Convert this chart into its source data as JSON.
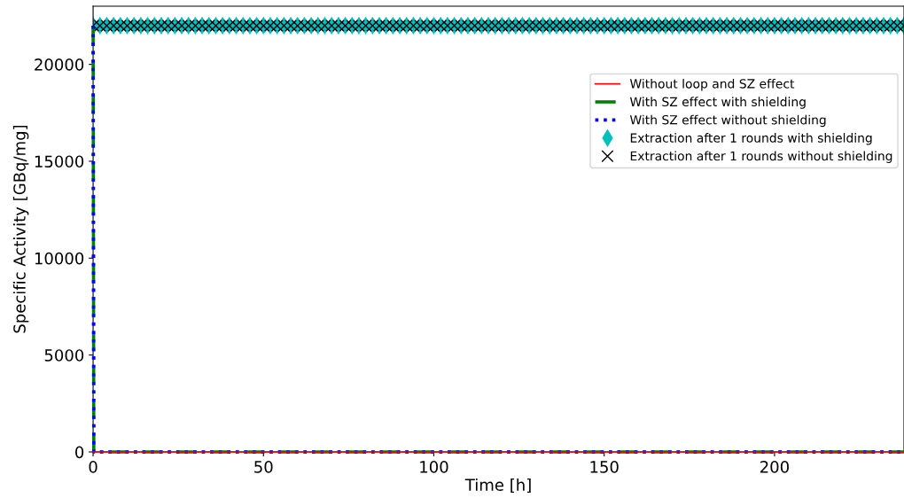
{
  "chart_data": {
    "type": "line",
    "xlabel": "Time [h]",
    "ylabel": "Specific Activity [GBq/mg]",
    "xlim": [
      0,
      238
    ],
    "ylim": [
      0,
      23000
    ],
    "xticks": [
      0,
      50,
      100,
      150,
      200
    ],
    "yticks": [
      0,
      5000,
      10000,
      15000,
      20000
    ],
    "grid": false,
    "legend": "top right",
    "series": [
      {
        "name": "Without loop and SZ effect",
        "color": "#ff0000",
        "line_style": "solid",
        "x": [
          0,
          238
        ],
        "values": [
          0,
          0
        ]
      },
      {
        "name": "With SZ effect with shielding",
        "color": "#008000",
        "line_style": "dashdot",
        "x": [
          0,
          0.2,
          238
        ],
        "values": [
          22000,
          0,
          0
        ]
      },
      {
        "name": "With SZ effect without shielding",
        "color": "#0000ff",
        "line_style": "dotted",
        "x": [
          0,
          0.2,
          238
        ],
        "values": [
          22000,
          0,
          0
        ]
      },
      {
        "name": "Extraction after 1 rounds with shielding",
        "type": "scatter",
        "marker": "diamond",
        "color": "#00bfbf",
        "x": [
          0,
          2,
          4,
          6,
          8,
          10,
          12,
          14,
          16,
          18,
          20,
          22,
          24,
          26,
          28,
          30,
          32,
          34,
          36,
          38,
          40,
          42,
          44,
          46,
          48,
          50,
          52,
          54,
          56,
          58,
          60,
          62,
          64,
          66,
          68,
          70,
          72,
          74,
          76,
          78,
          80,
          82,
          84,
          86,
          88,
          90,
          92,
          94,
          96,
          98,
          100,
          102,
          104,
          106,
          108,
          110,
          112,
          114,
          116,
          118,
          120,
          122,
          124,
          126,
          128,
          130,
          132,
          134,
          136,
          138,
          140,
          142,
          144,
          146,
          148,
          150,
          152,
          154,
          156,
          158,
          160,
          162,
          164,
          166,
          168,
          170,
          172,
          174,
          176,
          178,
          180,
          182,
          184,
          186,
          188,
          190,
          192,
          194,
          196,
          198,
          200,
          202,
          204,
          206,
          208,
          210,
          212,
          214,
          216,
          218,
          220,
          222,
          224,
          226,
          228,
          230,
          232,
          234,
          236,
          238
        ],
        "values": [
          22000,
          22000,
          22000,
          22000,
          22000,
          22000,
          22000,
          22000,
          22000,
          22000,
          22000,
          22000,
          22000,
          22000,
          22000,
          22000,
          22000,
          22000,
          22000,
          22000,
          22000,
          22000,
          22000,
          22000,
          22000,
          22000,
          22000,
          22000,
          22000,
          22000,
          22000,
          22000,
          22000,
          22000,
          22000,
          22000,
          22000,
          22000,
          22000,
          22000,
          22000,
          22000,
          22000,
          22000,
          22000,
          22000,
          22000,
          22000,
          22000,
          22000,
          22000,
          22000,
          22000,
          22000,
          22000,
          22000,
          22000,
          22000,
          22000,
          22000,
          22000,
          22000,
          22000,
          22000,
          22000,
          22000,
          22000,
          22000,
          22000,
          22000,
          22000,
          22000,
          22000,
          22000,
          22000,
          22000,
          22000,
          22000,
          22000,
          22000,
          22000,
          22000,
          22000,
          22000,
          22000,
          22000,
          22000,
          22000,
          22000,
          22000,
          22000,
          22000,
          22000,
          22000,
          22000,
          22000,
          22000,
          22000,
          22000,
          22000,
          22000,
          22000,
          22000,
          22000,
          22000,
          22000,
          22000,
          22000,
          22000,
          22000,
          22000,
          22000,
          22000,
          22000,
          22000,
          22000,
          22000,
          22000,
          22000,
          22000
        ]
      },
      {
        "name": "Extraction after 1 rounds without shielding",
        "type": "scatter",
        "marker": "cross",
        "color": "#000000",
        "x": [
          0,
          2,
          4,
          6,
          8,
          10,
          12,
          14,
          16,
          18,
          20,
          22,
          24,
          26,
          28,
          30,
          32,
          34,
          36,
          38,
          40,
          42,
          44,
          46,
          48,
          50,
          52,
          54,
          56,
          58,
          60,
          62,
          64,
          66,
          68,
          70,
          72,
          74,
          76,
          78,
          80,
          82,
          84,
          86,
          88,
          90,
          92,
          94,
          96,
          98,
          100,
          102,
          104,
          106,
          108,
          110,
          112,
          114,
          116,
          118,
          120,
          122,
          124,
          126,
          128,
          130,
          132,
          134,
          136,
          138,
          140,
          142,
          144,
          146,
          148,
          150,
          152,
          154,
          156,
          158,
          160,
          162,
          164,
          166,
          168,
          170,
          172,
          174,
          176,
          178,
          180,
          182,
          184,
          186,
          188,
          190,
          192,
          194,
          196,
          198,
          200,
          202,
          204,
          206,
          208,
          210,
          212,
          214,
          216,
          218,
          220,
          222,
          224,
          226,
          228,
          230,
          232,
          234,
          236,
          238
        ],
        "values": [
          22000,
          22000,
          22000,
          22000,
          22000,
          22000,
          22000,
          22000,
          22000,
          22000,
          22000,
          22000,
          22000,
          22000,
          22000,
          22000,
          22000,
          22000,
          22000,
          22000,
          22000,
          22000,
          22000,
          22000,
          22000,
          22000,
          22000,
          22000,
          22000,
          22000,
          22000,
          22000,
          22000,
          22000,
          22000,
          22000,
          22000,
          22000,
          22000,
          22000,
          22000,
          22000,
          22000,
          22000,
          22000,
          22000,
          22000,
          22000,
          22000,
          22000,
          22000,
          22000,
          22000,
          22000,
          22000,
          22000,
          22000,
          22000,
          22000,
          22000,
          22000,
          22000,
          22000,
          22000,
          22000,
          22000,
          22000,
          22000,
          22000,
          22000,
          22000,
          22000,
          22000,
          22000,
          22000,
          22000,
          22000,
          22000,
          22000,
          22000,
          22000,
          22000,
          22000,
          22000,
          22000,
          22000,
          22000,
          22000,
          22000,
          22000,
          22000,
          22000,
          22000,
          22000,
          22000,
          22000,
          22000,
          22000,
          22000,
          22000,
          22000,
          22000,
          22000,
          22000,
          22000,
          22000,
          22000,
          22000,
          22000,
          22000,
          22000,
          22000,
          22000,
          22000,
          22000,
          22000,
          22000,
          22000,
          22000,
          22000
        ]
      }
    ]
  }
}
